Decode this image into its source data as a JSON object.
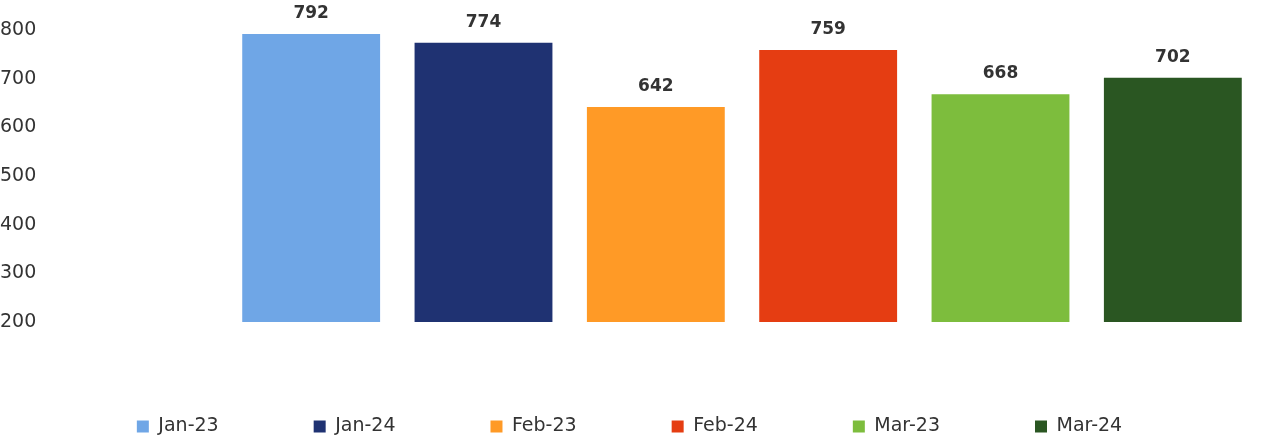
{
  "chart_data": {
    "type": "bar",
    "categories": [
      null
    ],
    "series": [
      {
        "name": "Jan-23",
        "color": "#6fa6e6",
        "values": [
          792
        ]
      },
      {
        "name": "Jan-24",
        "color": "#1f3272",
        "values": [
          774
        ]
      },
      {
        "name": "Feb-23",
        "color": "#ff9a26",
        "values": [
          642
        ]
      },
      {
        "name": "Feb-24",
        "color": "#e53d12",
        "values": [
          759
        ]
      },
      {
        "name": "Mar-23",
        "color": "#7dbd3d",
        "values": [
          668
        ]
      },
      {
        "name": "Mar-24",
        "color": "#2a5622",
        "values": [
          702
        ]
      }
    ],
    "ylim": [
      200,
      800
    ],
    "yticks": [
      200,
      300,
      400,
      500,
      600,
      700,
      800
    ],
    "grid": false,
    "legend": "bottom",
    "data_labels": true
  }
}
